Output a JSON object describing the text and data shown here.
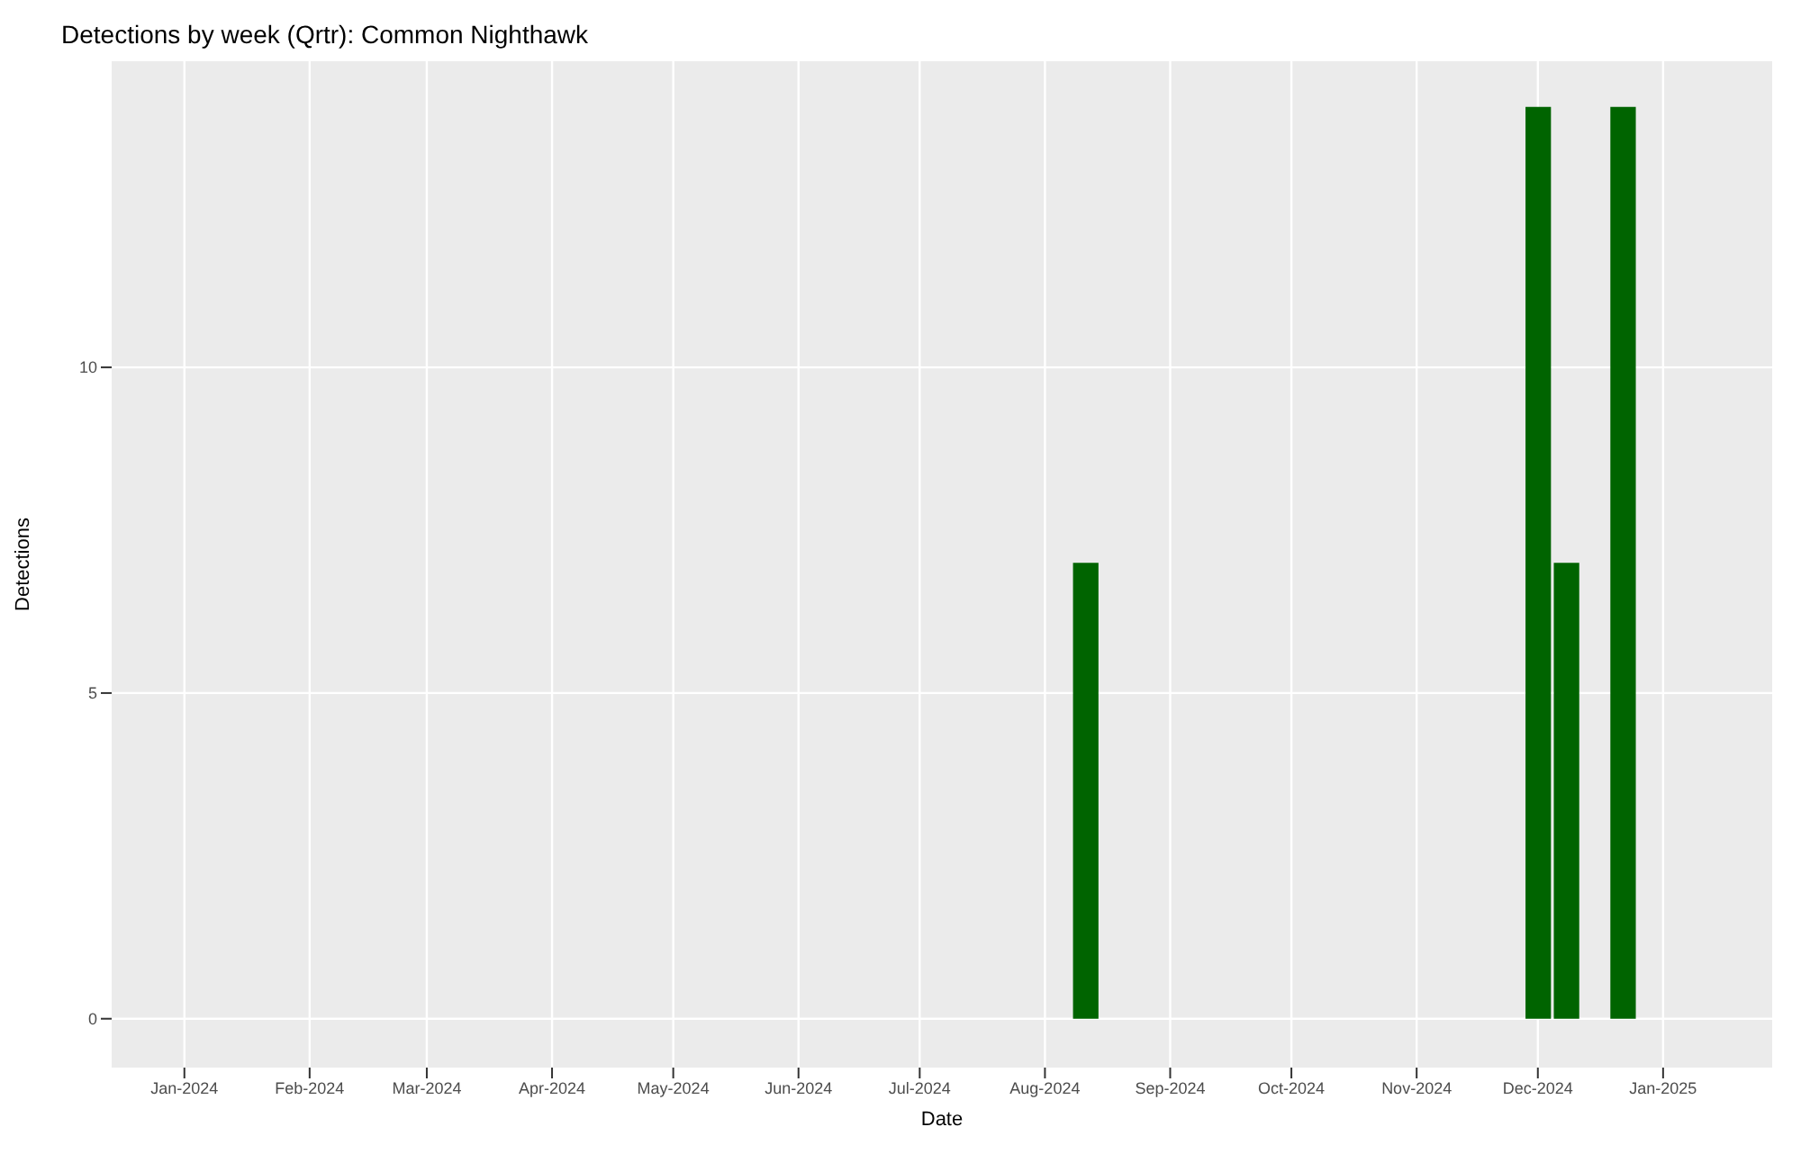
{
  "chart_data": {
    "type": "bar",
    "title": "Detections by week (Qrtr): Common Nighthawk",
    "xlabel": "Date",
    "ylabel": "Detections",
    "x": [
      "2024-08-11",
      "2024-12-01",
      "2024-12-08",
      "2024-12-22"
    ],
    "values": [
      7,
      14,
      7,
      14
    ],
    "color": "#006400",
    "xlim": [
      "2023-12-14",
      "2025-01-28"
    ],
    "xticks": [
      {
        "value": "2024-01-01",
        "label": "Jan-2024"
      },
      {
        "value": "2024-02-01",
        "label": "Feb-2024"
      },
      {
        "value": "2024-03-01",
        "label": "Mar-2024"
      },
      {
        "value": "2024-04-01",
        "label": "Apr-2024"
      },
      {
        "value": "2024-05-01",
        "label": "May-2024"
      },
      {
        "value": "2024-06-01",
        "label": "Jun-2024"
      },
      {
        "value": "2024-07-01",
        "label": "Jul-2024"
      },
      {
        "value": "2024-08-01",
        "label": "Aug-2024"
      },
      {
        "value": "2024-09-01",
        "label": "Sep-2024"
      },
      {
        "value": "2024-10-01",
        "label": "Oct-2024"
      },
      {
        "value": "2024-11-01",
        "label": "Nov-2024"
      },
      {
        "value": "2024-12-01",
        "label": "Dec-2024"
      },
      {
        "value": "2025-01-01",
        "label": "Jan-2025"
      }
    ],
    "ylim": [
      -0.75,
      14.7
    ],
    "yticks": [
      0,
      5,
      10
    ],
    "grid": true
  }
}
